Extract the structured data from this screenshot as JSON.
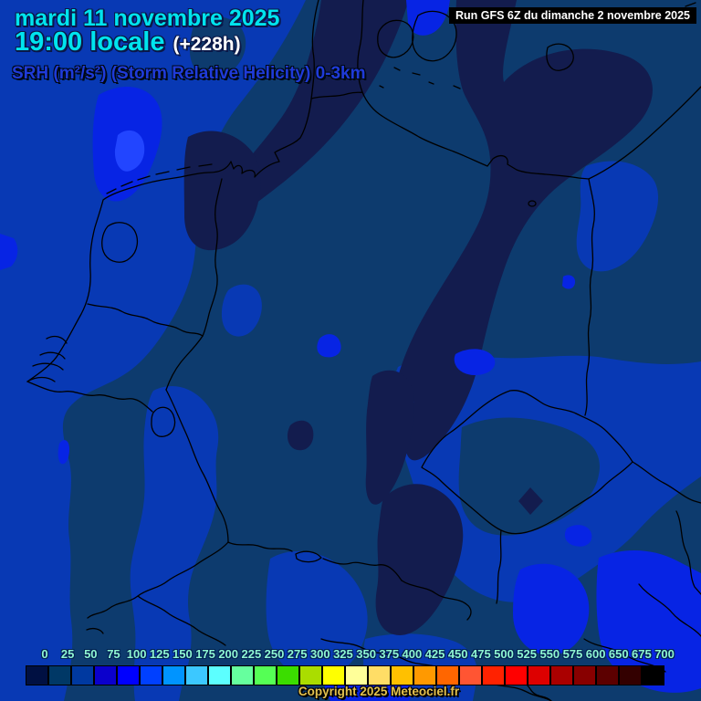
{
  "header": {
    "date": "mardi 11 novembre 2025",
    "time": "19:00 locale",
    "offset": "(+228h)",
    "parameter": "SRH (m²/s²) (Storm Relative Helicity) 0-3km"
  },
  "run_info": {
    "label": "Run GFS 6Z du dimanche 2 novembre 2025"
  },
  "attribution": {
    "label": "Copyright 2025 Meteociel.fr"
  },
  "scale": {
    "unit": "m²/s²",
    "values": [
      "0",
      "25",
      "50",
      "75",
      "100",
      "125",
      "150",
      "175",
      "200",
      "225",
      "250",
      "275",
      "300",
      "325",
      "350",
      "375",
      "400",
      "425",
      "450",
      "475",
      "500",
      "525",
      "550",
      "575",
      "600",
      "650",
      "675",
      "700"
    ],
    "colors": [
      "#001042",
      "#003866",
      "#0039A0",
      "#0B00CC",
      "#0000FF",
      "#0040FF",
      "#0094FF",
      "#3CC8FF",
      "#5CFFFF",
      "#66FF9E",
      "#55FF55",
      "#3BDD00",
      "#AADD00",
      "#FFFF00",
      "#FFFF99",
      "#FFDD66",
      "#FFC000",
      "#FF9900",
      "#FF6600",
      "#FF5533",
      "#FF2200",
      "#FF0000",
      "#DD0000",
      "#AA0000",
      "#880000",
      "#5C0000",
      "#330000",
      "#000000"
    ]
  },
  "map": {
    "palette": {
      "band_0_25": "#131C4E",
      "band_25_50": "#0D3B6E",
      "band_50_75": "#0839B4",
      "band_75_100": "#0724E4",
      "band_100_125": "#2245FF",
      "border_lines": "#000000"
    },
    "text_colors": {
      "title": "#00E4EE",
      "offset": "#FFFFFF",
      "parameter": "#1F3BD9",
      "scale_labels": "#8FF5D2",
      "attribution": "#E3C04E"
    }
  }
}
